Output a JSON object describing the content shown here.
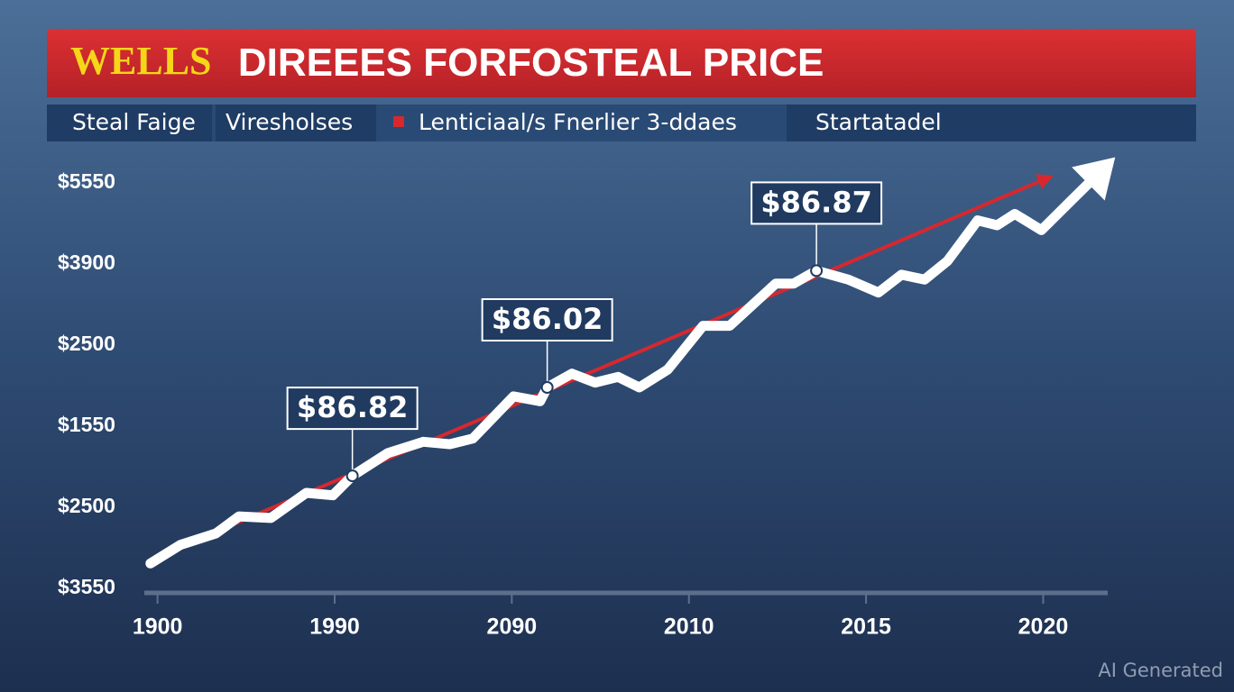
{
  "chart_data": {
    "type": "line",
    "title_highlight": "WELLS",
    "title": "DIREEES FORFOSTEAL PRICE",
    "header_tabs": [
      "Steal Faige",
      "Viresholses",
      "Startatadel"
    ],
    "watermark": "AI Generated",
    "xlim": [
      -0.1,
      5.4
    ],
    "xticks": [
      {
        "value": 0,
        "label": "1900"
      },
      {
        "value": 1,
        "label": "1990"
      },
      {
        "value": 2,
        "label": "2090"
      },
      {
        "value": 3,
        "label": "2010"
      },
      {
        "value": 4,
        "label": "2015"
      },
      {
        "value": 5,
        "label": "2020"
      }
    ],
    "ylim": [
      0,
      5.5
    ],
    "yticks": [
      {
        "value": 0,
        "label": "$3550"
      },
      {
        "value": 1,
        "label": "$2500"
      },
      {
        "value": 2,
        "label": "$1550"
      },
      {
        "value": 3,
        "label": "$2500"
      },
      {
        "value": 4,
        "label": "$3900"
      },
      {
        "value": 5,
        "label": "$5550"
      }
    ],
    "series": [
      {
        "color": "#ffffff",
        "x": [
          -0.04,
          0.13,
          0.33,
          0.46,
          0.64,
          0.84,
          0.99,
          1.1,
          1.3,
          1.5,
          1.65,
          1.78,
          2.01,
          2.16,
          2.2,
          2.34,
          2.47,
          2.6,
          2.72,
          2.88,
          3.08,
          3.23,
          3.49,
          3.59,
          3.72,
          3.9,
          4.07,
          4.2,
          4.33,
          4.46,
          4.63,
          4.74,
          4.84,
          4.99,
          5.17,
          5.3
        ],
        "values": [
          0.33,
          0.56,
          0.7,
          0.91,
          0.89,
          1.2,
          1.17,
          1.41,
          1.69,
          1.83,
          1.8,
          1.87,
          2.39,
          2.33,
          2.5,
          2.67,
          2.56,
          2.63,
          2.5,
          2.72,
          3.26,
          3.26,
          3.78,
          3.78,
          3.94,
          3.83,
          3.67,
          3.89,
          3.83,
          4.06,
          4.56,
          4.5,
          4.64,
          4.44,
          4.83,
          5.11
        ]
      },
      {
        "name": "Lenticiaal/s Fnerlier 3-ddaes",
        "color": "#d6282e",
        "x": [
          0.33,
          5.0
        ],
        "values": [
          0.72,
          5.06
        ]
      }
    ],
    "annotations": [
      {
        "text": "$86.82",
        "x": 1.1,
        "y": 1.41
      },
      {
        "text": "$86.02",
        "x": 2.2,
        "y": 2.5
      },
      {
        "text": "$86.87",
        "x": 3.72,
        "y": 3.94
      }
    ]
  }
}
